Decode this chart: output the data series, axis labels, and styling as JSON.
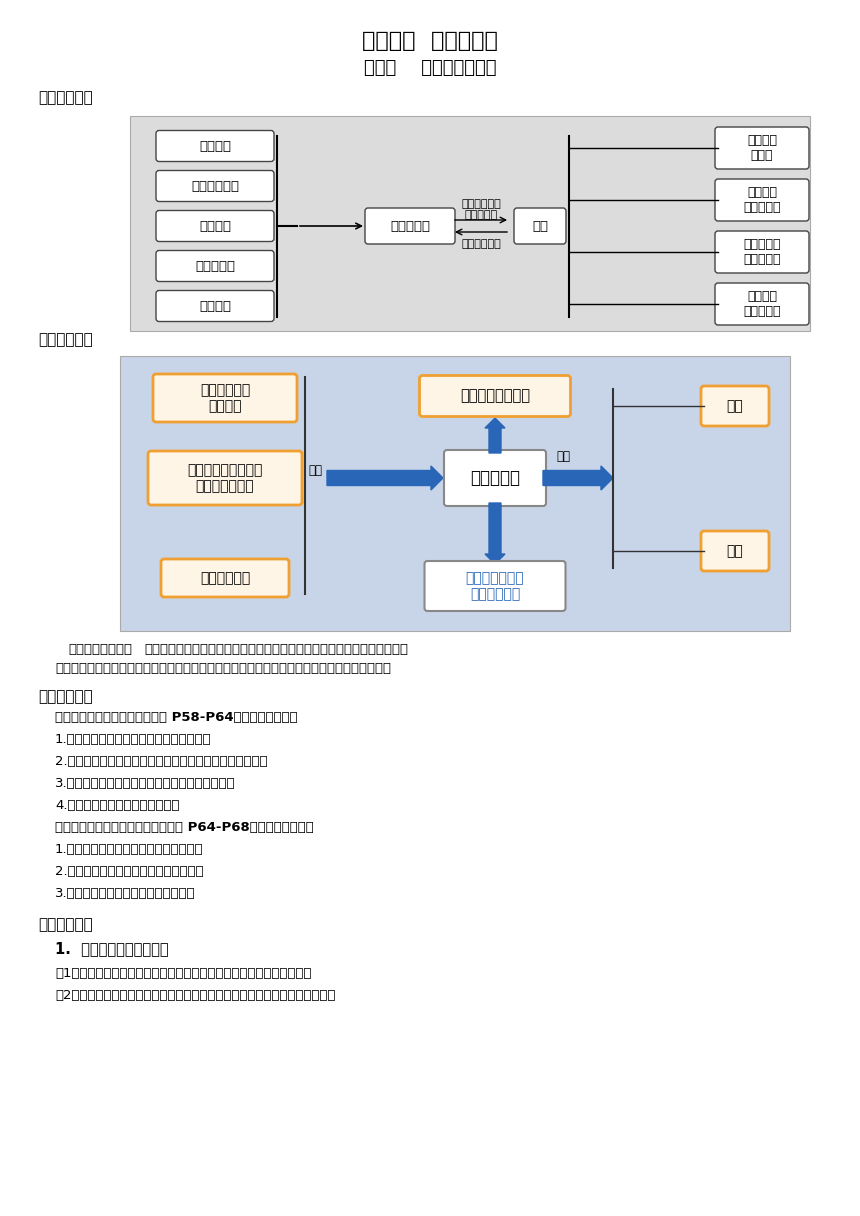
{
  "title1": "第三单元  经济全球化",
  "title2": "第六课    走进经济全球化",
  "section1_label": "【单元结构】",
  "section2_label": "【课时结构】",
  "section3_label": "【问题导引】",
  "section4_label": "【重点突破】",
  "unit_left_boxes": [
    "主要表现",
    "主要影响因素",
    "重要载体",
    "机遇与挑战",
    "更有活力"
  ],
  "unit_center_box": "经济全球化",
  "unit_center_china": "中国",
  "unit_top_text1": "发展更高层次",
  "unit_top_text2": "开放型经济",
  "unit_bottom_text": "完善全球治理",
  "unit_right_boxes": [
    "全面开放\n新格局",
    "对外开放\n与自力更生",
    "世界经济的\n重要推动者",
    "推动经济\n全球化发展"
  ],
  "course_left_boxes": [
    "社会生产力和\n科技进步",
    "世界各国对本国、本\n民族利益的追求",
    "市场经济体制"
  ],
  "course_center_top": "含义、表现、载体",
  "course_center_main": "经济全球化",
  "course_center_bottom": "让经济全球化更\n有活力的措施",
  "course_right_boxes": [
    "机遇",
    "挑战"
  ],
  "course_left_label": "影响",
  "course_right_label": "影响",
  "logic_bold": "两框的逻辑关系：",
  "logic_rest1": "经济全球化是什么，为什么会出现经济全球化，经济全球化产生了怎样的影",
  "logic_rest2": "响，如何引导经济全球化的发展方向。本课内容遵循是什么、为什么和怎么办的内在逻辑展开。",
  "wentti_lines": [
    "一、认识经济全球化（阅读教材 P58-P64，回答下列问题）",
    "1.什么是经济全球化？其主要表现有哪些？",
    "2.影响经济全球化的主要因素有哪些？各自是如何影响的？",
    "3.什么是跨国公司，其运营的方式和目的是什么？",
    "4.如何全面认识跨国公司的影响？",
    "二、日益开放的世界经济（阅读教材 P64-P68，回答下列问题）",
    "1.掌握经济全球化的机遇（积极意义）。",
    "2.理解经济全球化的挑战（消极影响）。",
    "3.明确让经济全球化更有活力的措施。"
  ],
  "zhongdian_title": "1.  经济全球化的影响因素",
  "zhongdian_lines": [
    "（1）经济全球化是社会生产力发展的客观要求和科技进步的必然结果。",
    "（2）经济全球化加速发展的根本动因是世界各国对本国、本民族利益的追求。"
  ],
  "bg_color": "#ffffff",
  "diagram1_bg": "#DCDCDC",
  "diagram2_bg": "#C8D4E8",
  "blue_color": "#2966B8",
  "orange_border": "#F0A030",
  "orange_fill": "#FFF5E6"
}
